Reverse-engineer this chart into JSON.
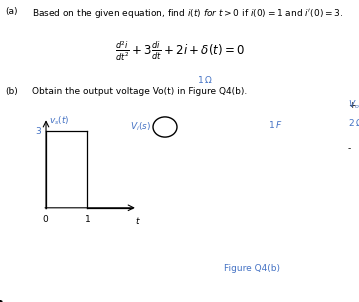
{
  "bg_color": "#ffffff",
  "text_color": "#000000",
  "blue_color": "#4472c4",
  "part_a_label": "(a)",
  "part_a_text": "Based on the given equation, find $i(t)$ $for$ $t > 0$ if $i(0) = 1$ and $i'(0) = 3$.",
  "equation": "$\\frac{d^2i}{dt^2} + 3\\frac{di}{dt} + 2i + \\delta(t) = 0$",
  "part_b_label": "(b)",
  "part_b_text": "Obtain the output voltage Vo(t) in Figure Q4(b).",
  "figure_caption": "Figure Q4(b)",
  "graph_ylabel": "$v_s(t)$",
  "resistor_label": "$1\\,\\Omega$",
  "capacitor_label": "$1\\,F$",
  "load_label": "$2\\,\\Omega$",
  "source_label": "$V_i(s)$",
  "vo_label": "$V_o(t)$",
  "plus": "+",
  "minus": "-"
}
